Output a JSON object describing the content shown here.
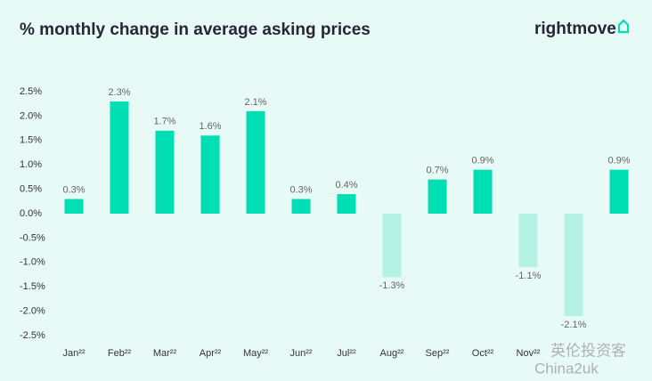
{
  "chart_data": {
    "type": "bar",
    "title": "% monthly change in average asking prices",
    "brand": "rightmove",
    "categories": [
      "Jan²²",
      "Feb²²",
      "Mar²²",
      "Apr²²",
      "May²²",
      "Jun²²",
      "Jul²²",
      "Aug²²",
      "Sep²²",
      "Oct²²",
      "Nov²²",
      null,
      null
    ],
    "values": [
      0.3,
      2.3,
      1.7,
      1.6,
      2.1,
      0.3,
      0.4,
      -1.3,
      0.7,
      0.9,
      -1.1,
      -2.1,
      0.9
    ],
    "value_labels": [
      "0.3%",
      "2.3%",
      "1.7%",
      "1.6%",
      "2.1%",
      "0.3%",
      "0.4%",
      "-1.3%",
      "0.7%",
      "0.9%",
      "-1.1%",
      "-2.1%",
      "0.9%"
    ],
    "positive_color": "#00deb4",
    "negative_color": "#b4f2e4",
    "ylim": [
      -2.6,
      2.6
    ],
    "yticks": [
      {
        "value": 2.5,
        "label": "2.5%"
      },
      {
        "value": 2.0,
        "label": "2.0%"
      },
      {
        "value": 1.5,
        "label": "1.5%"
      },
      {
        "value": 1.0,
        "label": "1.0%"
      },
      {
        "value": 0.5,
        "label": "0.5%"
      },
      {
        "value": 0.0,
        "label": "0.0%"
      },
      {
        "value": -0.5,
        "label": "-0.5%"
      },
      {
        "value": -1.0,
        "label": "-1.0%"
      },
      {
        "value": -1.5,
        "label": "-1.5%"
      },
      {
        "value": -2.0,
        "label": "-2.0%"
      },
      {
        "value": -2.5,
        "label": "-2.5%"
      }
    ],
    "grid": false,
    "watermark": [
      "英伦投资客",
      "China2uk"
    ]
  }
}
